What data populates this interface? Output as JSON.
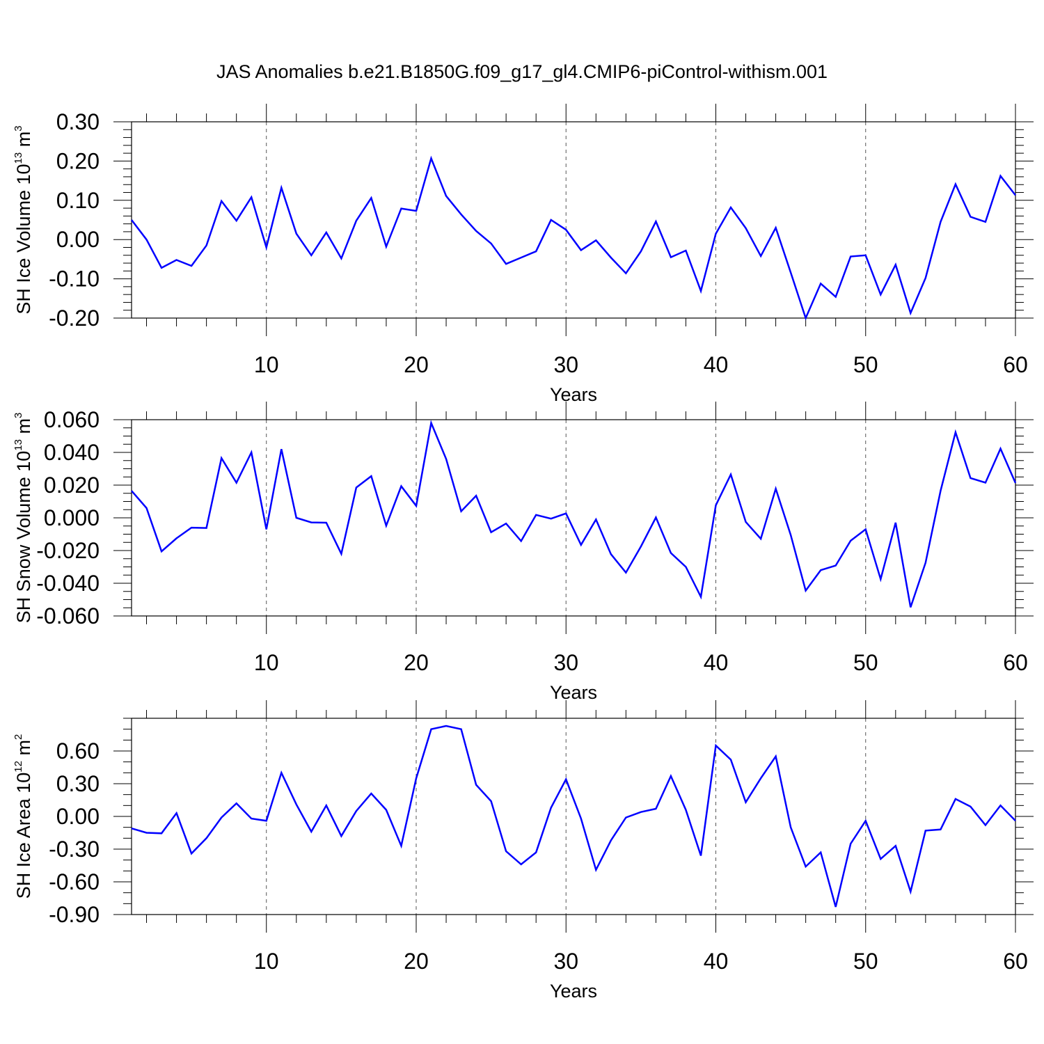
{
  "title": "JAS Anomalies b.e21.B1850G.f09_g17_gl4.CMIP6-piControl-withism.001",
  "line_color": "#0000ff",
  "chart_data": [
    {
      "type": "line",
      "xlabel": "Years",
      "ylabel": {
        "main": "SH Ice Volume 10",
        "exp": "13",
        "unit": " m",
        "unit_exp": "3"
      },
      "xlim": [
        1,
        60
      ],
      "ylim": [
        -0.2,
        0.3
      ],
      "x_ticks": [
        10,
        20,
        30,
        40,
        50,
        60
      ],
      "x_tick_labels": [
        "10",
        "20",
        "30",
        "40",
        "50",
        "60"
      ],
      "y_ticks": [
        -0.2,
        -0.1,
        0.0,
        0.1,
        0.2,
        0.3
      ],
      "y_tick_labels": [
        "-0.20",
        "-0.10",
        "0.00",
        "0.10",
        "0.20",
        "0.30"
      ],
      "y_minor_step": 0.02,
      "series": [
        {
          "name": "SH Ice Volume",
          "values": [
            0.05,
            0.0,
            -0.072,
            -0.052,
            -0.067,
            -0.015,
            0.098,
            0.048,
            0.108,
            -0.02,
            0.132,
            0.015,
            -0.04,
            0.018,
            -0.048,
            0.048,
            0.106,
            -0.018,
            0.079,
            0.073,
            0.207,
            0.111,
            0.064,
            0.022,
            -0.01,
            -0.062,
            -0.046,
            -0.03,
            0.05,
            0.025,
            -0.027,
            -0.002,
            -0.046,
            -0.086,
            -0.03,
            0.046,
            -0.045,
            -0.028,
            -0.131,
            0.015,
            0.082,
            0.029,
            -0.042,
            0.03,
            -0.084,
            -0.2,
            -0.112,
            -0.146,
            -0.043,
            -0.04,
            -0.14,
            -0.064,
            -0.187,
            -0.098,
            0.045,
            0.141,
            0.058,
            0.045,
            0.162,
            0.113
          ]
        }
      ]
    },
    {
      "type": "line",
      "xlabel": "Years",
      "ylabel": {
        "main": "SH Snow Volume 10",
        "exp": "13",
        "unit": " m",
        "unit_exp": "3"
      },
      "xlim": [
        1,
        60
      ],
      "ylim": [
        -0.06,
        0.06
      ],
      "x_ticks": [
        10,
        20,
        30,
        40,
        50,
        60
      ],
      "x_tick_labels": [
        "10",
        "20",
        "30",
        "40",
        "50",
        "60"
      ],
      "y_ticks": [
        -0.06,
        -0.04,
        -0.02,
        0.0,
        0.02,
        0.04,
        0.06
      ],
      "y_tick_labels": [
        "-0.060",
        "-0.040",
        "-0.020",
        "0.000",
        "0.020",
        "0.040",
        "0.060"
      ],
      "y_minor_step": 0.005,
      "series": [
        {
          "name": "SH Snow Volume",
          "values": [
            0.0165,
            0.006,
            -0.0205,
            -0.0125,
            -0.006,
            -0.0062,
            0.0365,
            0.0215,
            0.04,
            -0.007,
            0.042,
            0.0,
            -0.0028,
            -0.003,
            -0.022,
            0.0185,
            0.0255,
            -0.0048,
            0.0193,
            0.0073,
            0.058,
            0.036,
            0.004,
            0.0135,
            -0.0088,
            -0.0035,
            -0.0142,
            0.0018,
            -0.0005,
            0.0027,
            -0.0165,
            -0.001,
            -0.0222,
            -0.0335,
            -0.0175,
            0.0002,
            -0.0215,
            -0.03,
            -0.0483,
            0.0077,
            0.0265,
            -0.0025,
            -0.0128,
            0.0178,
            -0.0105,
            -0.0445,
            -0.032,
            -0.0292,
            -0.014,
            -0.007,
            -0.0375,
            -0.003,
            -0.0547,
            -0.0275,
            0.0165,
            0.0523,
            0.0243,
            0.0215,
            0.0423,
            0.0213
          ]
        }
      ]
    },
    {
      "type": "line",
      "xlabel": "Years",
      "ylabel": {
        "main": "SH Ice Area 10",
        "exp": "12",
        "unit": " m",
        "unit_exp": "2"
      },
      "xlim": [
        1,
        60
      ],
      "ylim": [
        -0.9,
        0.9
      ],
      "x_ticks": [
        10,
        20,
        30,
        40,
        50,
        60
      ],
      "x_tick_labels": [
        "10",
        "20",
        "30",
        "40",
        "50",
        "60"
      ],
      "y_ticks": [
        -0.9,
        -0.6,
        -0.3,
        0.0,
        0.3,
        0.6
      ],
      "y_tick_labels": [
        "-0.90",
        "-0.60",
        "-0.30",
        "0.00",
        "0.30",
        "0.60"
      ],
      "y_minor_step": 0.1,
      "series": [
        {
          "name": "SH Ice Area",
          "values": [
            -0.11,
            -0.15,
            -0.155,
            0.03,
            -0.34,
            -0.2,
            -0.01,
            0.12,
            -0.02,
            -0.04,
            0.4,
            0.11,
            -0.14,
            0.1,
            -0.18,
            0.05,
            0.21,
            0.06,
            -0.27,
            0.35,
            0.8,
            0.83,
            0.8,
            0.29,
            0.14,
            -0.32,
            -0.44,
            -0.33,
            0.08,
            0.34,
            -0.02,
            -0.49,
            -0.22,
            -0.01,
            0.04,
            0.07,
            0.37,
            0.06,
            -0.36,
            0.65,
            0.52,
            0.13,
            0.35,
            0.55,
            -0.1,
            -0.46,
            -0.33,
            -0.83,
            -0.25,
            -0.04,
            -0.39,
            -0.27,
            -0.69,
            -0.13,
            -0.12,
            0.16,
            0.09,
            -0.08,
            0.1,
            -0.04
          ]
        }
      ]
    }
  ]
}
